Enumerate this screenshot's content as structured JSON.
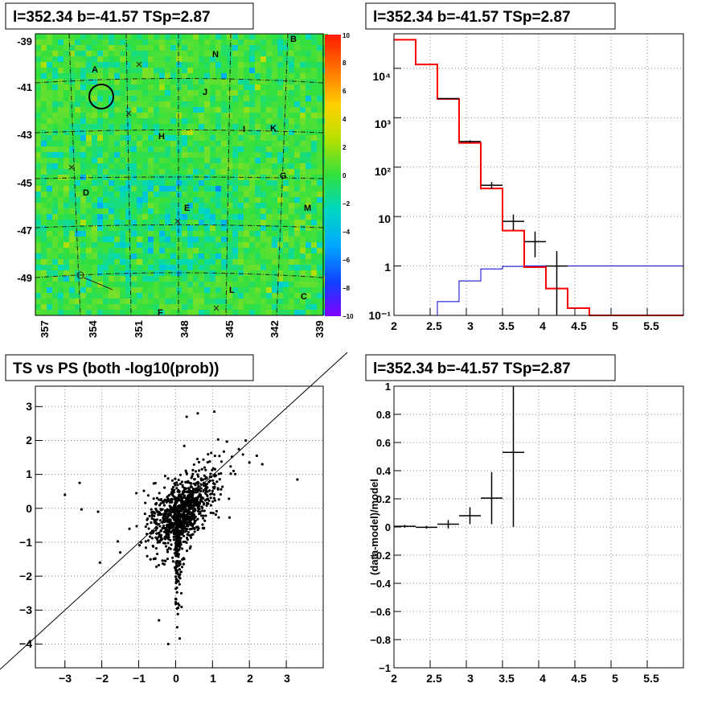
{
  "panels": {
    "skymap_title": "l=352.34 b=-41.57 TSp=2.87",
    "spectrum_title": "l=352.34 b=-41.57 TSp=2.87",
    "scatter_title": "TS vs PS (both -log10(prob))",
    "residual_title": "l=352.34 b=-41.57 TSp=2.87"
  },
  "chart_data": [
    {
      "type": "heatmap",
      "title": "l=352.34 b=-41.57 TSp=2.87",
      "x_ticks": [
        "357",
        "354",
        "351",
        "348",
        "345",
        "342",
        "339"
      ],
      "y_ticks": [
        "-39",
        "-41",
        "-43",
        "-45",
        "-47",
        "-49"
      ],
      "colorbar_ticks": [
        "10",
        "8",
        "6",
        "4",
        "2",
        "0",
        "−2",
        "−4",
        "−6",
        "−8",
        "−10"
      ],
      "zlim": [
        -10,
        10
      ],
      "source_labels": [
        "A",
        "B",
        "C",
        "D",
        "E",
        "F",
        "G",
        "H",
        "I",
        "J",
        "K",
        "L",
        "M",
        "N"
      ]
    },
    {
      "type": "line",
      "title": "l=352.34 b=-41.57 TSp=2.87",
      "log_y": true,
      "xlim": [
        2,
        6
      ],
      "ylim": [
        0.1,
        50000
      ],
      "x_ticks": [
        "2",
        "2.5",
        "3",
        "3.5",
        "4",
        "4.5",
        "5",
        "5.5"
      ],
      "y_ticks": [
        "10⁻¹",
        "1",
        "10",
        "10²",
        "10³",
        "10⁴"
      ],
      "series": [
        {
          "style": "red-step",
          "edges": [
            2.0,
            2.3,
            2.6,
            2.9,
            3.2,
            3.5,
            3.8,
            4.1,
            4.4,
            4.7,
            5.0,
            6.0
          ],
          "values": [
            38000,
            12000,
            2400,
            310,
            37,
            5.2,
            0.95,
            0.35,
            0.14,
            0.1,
            0.1
          ]
        },
        {
          "style": "blue-step",
          "edges": [
            2.3,
            2.6,
            2.9,
            3.2,
            3.5,
            3.8,
            4.1,
            6.0
          ],
          "values": [
            0.1,
            0.19,
            0.5,
            0.87,
            0.98,
            1.0,
            1.0
          ]
        },
        {
          "style": "black-errorbars",
          "points": [
            {
              "x": 2.75,
              "xerr": 0.15,
              "y": 2450,
              "ylo": 2400,
              "yhi": 2500
            },
            {
              "x": 3.05,
              "xerr": 0.15,
              "y": 330,
              "ylo": 310,
              "yhi": 350
            },
            {
              "x": 3.35,
              "xerr": 0.15,
              "y": 43,
              "ylo": 36,
              "yhi": 50
            },
            {
              "x": 3.65,
              "xerr": 0.15,
              "y": 8.0,
              "ylo": 5.3,
              "yhi": 11
            },
            {
              "x": 3.95,
              "xerr": 0.15,
              "y": 3.1,
              "ylo": 1.5,
              "yhi": 5.0
            },
            {
              "x": 4.25,
              "xerr": 0.15,
              "y": 1.0,
              "ylo": 0.1,
              "yhi": 2.0
            }
          ]
        }
      ]
    },
    {
      "type": "scatter",
      "title": "TS vs PS (both -log10(prob))",
      "xlim": [
        -3.8,
        4.0
      ],
      "ylim": [
        -4.7,
        3.6
      ],
      "x_ticks": [
        "−3",
        "−2",
        "−1",
        "0",
        "1",
        "2",
        "3"
      ],
      "y_ticks": [
        "−4",
        "−3",
        "−2",
        "−1",
        "0",
        "1",
        "2",
        "3"
      ],
      "diagonal": "y = x",
      "outliers": [
        [
          -3.0,
          0.4
        ],
        [
          -2.6,
          0.75
        ],
        [
          -2.55,
          -0.03
        ],
        [
          3.3,
          0.85
        ],
        [
          2.2,
          1.55
        ],
        [
          2.35,
          1.3
        ],
        [
          -2.1,
          -0.1
        ],
        [
          1.05,
          2.85
        ],
        [
          0.6,
          2.8
        ],
        [
          0.3,
          2.7
        ],
        [
          -0.2,
          -4.0
        ],
        [
          -0.45,
          -3.3
        ],
        [
          -1.5,
          -1.3
        ],
        [
          -2.05,
          -1.6
        ],
        [
          1.9,
          2.0
        ],
        [
          2.0,
          1.35
        ]
      ]
    },
    {
      "type": "line",
      "title": "l=352.34 b=-41.57 TSp=2.87",
      "xlim": [
        2,
        6
      ],
      "ylim": [
        -1,
        1
      ],
      "ylabel": "(data-model)/model",
      "x_ticks": [
        "2",
        "2.5",
        "3",
        "3.5",
        "4",
        "4.5",
        "5",
        "5.5"
      ],
      "y_ticks": [
        "−1",
        "−0.8",
        "−0.6",
        "−0.4",
        "−0.2",
        "0",
        "0.2",
        "0.4",
        "0.6",
        "0.8",
        "1"
      ],
      "points": [
        {
          "x": 2.15,
          "xerr": 0.15,
          "y": 0.005,
          "ylo": -0.005,
          "yhi": 0.015
        },
        {
          "x": 2.45,
          "xerr": 0.15,
          "y": -0.002,
          "ylo": -0.012,
          "yhi": 0.008
        },
        {
          "x": 2.75,
          "xerr": 0.15,
          "y": 0.02,
          "ylo": -0.01,
          "yhi": 0.05
        },
        {
          "x": 3.05,
          "xerr": 0.15,
          "y": 0.08,
          "ylo": 0.02,
          "yhi": 0.14
        },
        {
          "x": 3.35,
          "xerr": 0.15,
          "y": 0.205,
          "ylo": 0.02,
          "yhi": 0.39
        },
        {
          "x": 3.65,
          "xerr": 0.15,
          "y": 0.53,
          "ylo": 0.0,
          "yhi": 1.0
        }
      ]
    }
  ]
}
